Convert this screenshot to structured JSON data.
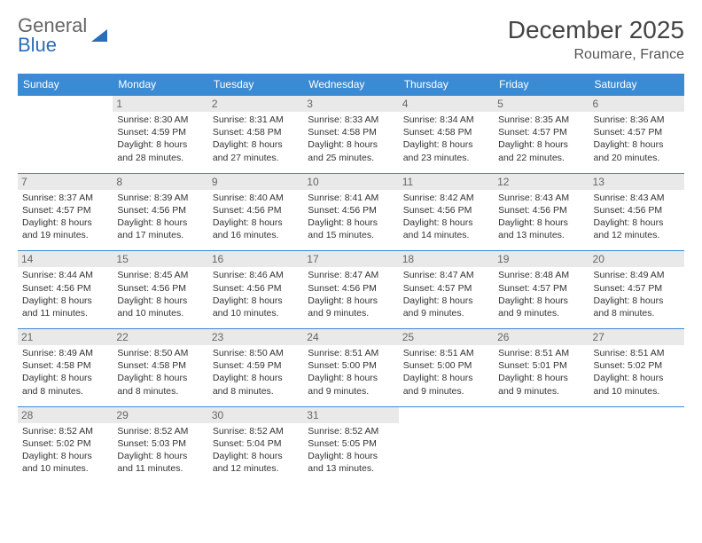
{
  "logo": {
    "word1": "General",
    "word2": "Blue"
  },
  "title": "December 2025",
  "location": "Roumare, France",
  "header_bg": "#3b8bd4",
  "daynum_bg": "#e9e9e9",
  "border_color": "#3b8bd4",
  "weekdays": [
    "Sunday",
    "Monday",
    "Tuesday",
    "Wednesday",
    "Thursday",
    "Friday",
    "Saturday"
  ],
  "first_weekday_offset": 1,
  "days": [
    {
      "n": 1,
      "sunrise": "8:30 AM",
      "sunset": "4:59 PM",
      "daylight": "8 hours and 28 minutes."
    },
    {
      "n": 2,
      "sunrise": "8:31 AM",
      "sunset": "4:58 PM",
      "daylight": "8 hours and 27 minutes."
    },
    {
      "n": 3,
      "sunrise": "8:33 AM",
      "sunset": "4:58 PM",
      "daylight": "8 hours and 25 minutes."
    },
    {
      "n": 4,
      "sunrise": "8:34 AM",
      "sunset": "4:58 PM",
      "daylight": "8 hours and 23 minutes."
    },
    {
      "n": 5,
      "sunrise": "8:35 AM",
      "sunset": "4:57 PM",
      "daylight": "8 hours and 22 minutes."
    },
    {
      "n": 6,
      "sunrise": "8:36 AM",
      "sunset": "4:57 PM",
      "daylight": "8 hours and 20 minutes."
    },
    {
      "n": 7,
      "sunrise": "8:37 AM",
      "sunset": "4:57 PM",
      "daylight": "8 hours and 19 minutes."
    },
    {
      "n": 8,
      "sunrise": "8:39 AM",
      "sunset": "4:56 PM",
      "daylight": "8 hours and 17 minutes."
    },
    {
      "n": 9,
      "sunrise": "8:40 AM",
      "sunset": "4:56 PM",
      "daylight": "8 hours and 16 minutes."
    },
    {
      "n": 10,
      "sunrise": "8:41 AM",
      "sunset": "4:56 PM",
      "daylight": "8 hours and 15 minutes."
    },
    {
      "n": 11,
      "sunrise": "8:42 AM",
      "sunset": "4:56 PM",
      "daylight": "8 hours and 14 minutes."
    },
    {
      "n": 12,
      "sunrise": "8:43 AM",
      "sunset": "4:56 PM",
      "daylight": "8 hours and 13 minutes."
    },
    {
      "n": 13,
      "sunrise": "8:43 AM",
      "sunset": "4:56 PM",
      "daylight": "8 hours and 12 minutes."
    },
    {
      "n": 14,
      "sunrise": "8:44 AM",
      "sunset": "4:56 PM",
      "daylight": "8 hours and 11 minutes."
    },
    {
      "n": 15,
      "sunrise": "8:45 AM",
      "sunset": "4:56 PM",
      "daylight": "8 hours and 10 minutes."
    },
    {
      "n": 16,
      "sunrise": "8:46 AM",
      "sunset": "4:56 PM",
      "daylight": "8 hours and 10 minutes."
    },
    {
      "n": 17,
      "sunrise": "8:47 AM",
      "sunset": "4:56 PM",
      "daylight": "8 hours and 9 minutes."
    },
    {
      "n": 18,
      "sunrise": "8:47 AM",
      "sunset": "4:57 PM",
      "daylight": "8 hours and 9 minutes."
    },
    {
      "n": 19,
      "sunrise": "8:48 AM",
      "sunset": "4:57 PM",
      "daylight": "8 hours and 9 minutes."
    },
    {
      "n": 20,
      "sunrise": "8:49 AM",
      "sunset": "4:57 PM",
      "daylight": "8 hours and 8 minutes."
    },
    {
      "n": 21,
      "sunrise": "8:49 AM",
      "sunset": "4:58 PM",
      "daylight": "8 hours and 8 minutes."
    },
    {
      "n": 22,
      "sunrise": "8:50 AM",
      "sunset": "4:58 PM",
      "daylight": "8 hours and 8 minutes."
    },
    {
      "n": 23,
      "sunrise": "8:50 AM",
      "sunset": "4:59 PM",
      "daylight": "8 hours and 8 minutes."
    },
    {
      "n": 24,
      "sunrise": "8:51 AM",
      "sunset": "5:00 PM",
      "daylight": "8 hours and 9 minutes."
    },
    {
      "n": 25,
      "sunrise": "8:51 AM",
      "sunset": "5:00 PM",
      "daylight": "8 hours and 9 minutes."
    },
    {
      "n": 26,
      "sunrise": "8:51 AM",
      "sunset": "5:01 PM",
      "daylight": "8 hours and 9 minutes."
    },
    {
      "n": 27,
      "sunrise": "8:51 AM",
      "sunset": "5:02 PM",
      "daylight": "8 hours and 10 minutes."
    },
    {
      "n": 28,
      "sunrise": "8:52 AM",
      "sunset": "5:02 PM",
      "daylight": "8 hours and 10 minutes."
    },
    {
      "n": 29,
      "sunrise": "8:52 AM",
      "sunset": "5:03 PM",
      "daylight": "8 hours and 11 minutes."
    },
    {
      "n": 30,
      "sunrise": "8:52 AM",
      "sunset": "5:04 PM",
      "daylight": "8 hours and 12 minutes."
    },
    {
      "n": 31,
      "sunrise": "8:52 AM",
      "sunset": "5:05 PM",
      "daylight": "8 hours and 13 minutes."
    }
  ],
  "labels": {
    "sunrise": "Sunrise:",
    "sunset": "Sunset:",
    "daylight": "Daylight:"
  }
}
